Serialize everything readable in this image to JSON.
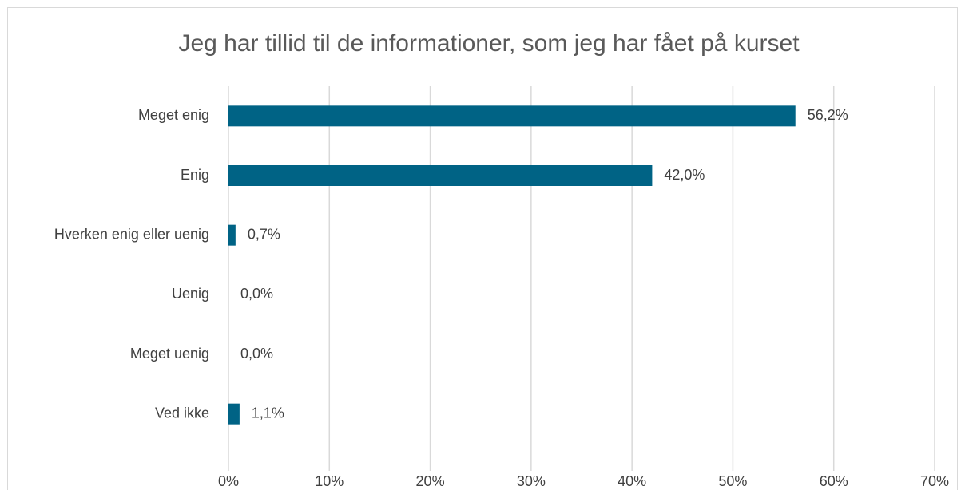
{
  "chart_data": {
    "type": "bar",
    "orientation": "horizontal",
    "title": "Jeg har tillid til de informationer, som jeg har fået på kurset",
    "categories": [
      "Meget enig",
      "Enig",
      "Hverken enig eller uenig",
      "Uenig",
      "Meget uenig",
      "Ved ikke"
    ],
    "values": [
      56.2,
      42.0,
      0.7,
      0.0,
      0.0,
      1.1
    ],
    "value_labels": [
      "56,2%",
      "42,0%",
      "0,7%",
      "0,0%",
      "0,0%",
      "1,1%"
    ],
    "color": "#006385",
    "xlim": [
      0,
      70
    ],
    "xticks": [
      {
        "value": 0,
        "label": "0%"
      },
      {
        "value": 10,
        "label": "10%"
      },
      {
        "value": 20,
        "label": "20%"
      },
      {
        "value": 30,
        "label": "30%"
      },
      {
        "value": 40,
        "label": "40%"
      },
      {
        "value": 50,
        "label": "50%"
      },
      {
        "value": 60,
        "label": "60%"
      },
      {
        "value": 70,
        "label": "70%"
      }
    ],
    "grid": true
  }
}
